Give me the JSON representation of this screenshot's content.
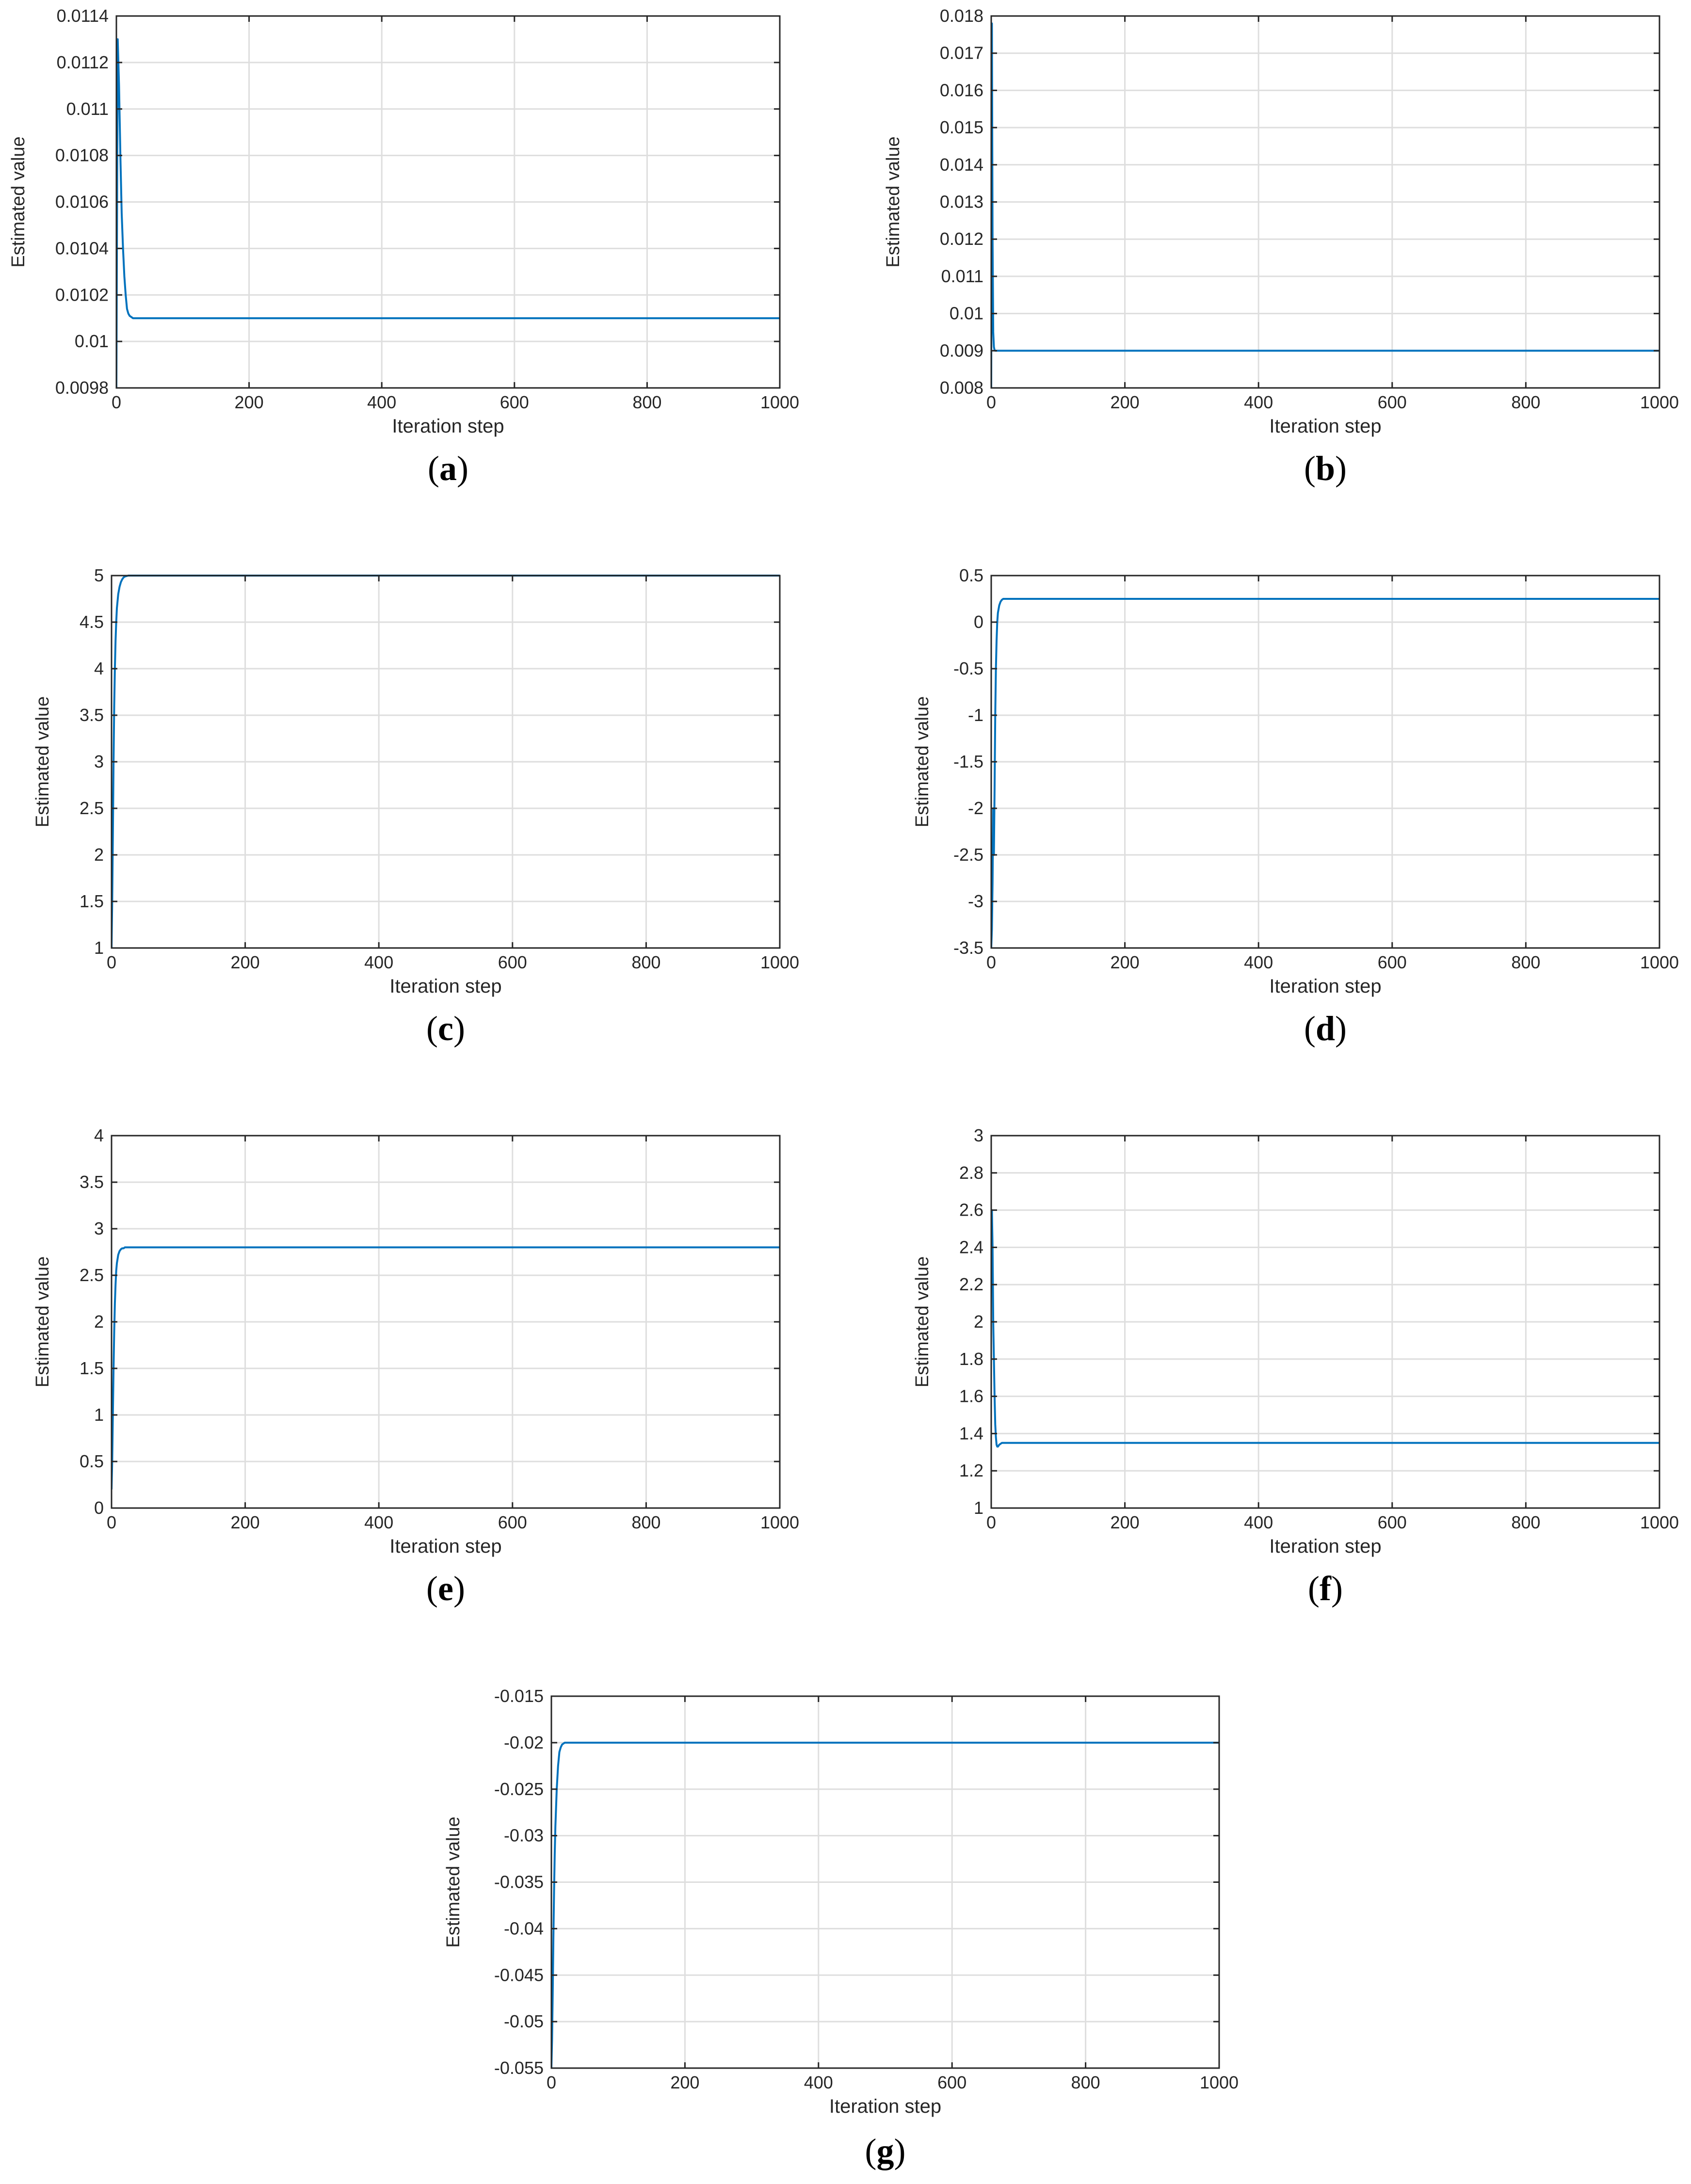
{
  "colors": {
    "series": "#0072bd",
    "grid": "#dedede",
    "axes": "#262626"
  },
  "chart_data": [
    {
      "type": "line",
      "caption": "a",
      "xlabel": "Iteration step",
      "ylabel": "Estimated value",
      "xlim": [
        0,
        1000
      ],
      "ylim": [
        0.0098,
        0.0114
      ],
      "grid": true,
      "xticks": [
        0,
        200,
        400,
        600,
        800,
        1000
      ],
      "xtick_labels": [
        "0",
        "200",
        "400",
        "600",
        "800",
        "1000"
      ],
      "yticks": [
        0.0098,
        0.01,
        0.0102,
        0.0104,
        0.0106,
        0.0108,
        0.011,
        0.0112,
        0.0114
      ],
      "ytick_labels": [
        "0.0098",
        "0.01",
        "0.0102",
        "0.0104",
        "0.0106",
        "0.0108",
        "0.011",
        "0.0112",
        "0.0114"
      ],
      "series": [
        {
          "x": [
            0,
            2,
            4,
            6,
            8,
            10,
            12,
            14,
            16,
            18,
            20,
            25,
            30,
            50,
            100,
            1000
          ],
          "y": [
            0.0098,
            0.0113,
            0.0111,
            0.0108,
            0.01055,
            0.0104,
            0.01028,
            0.0102,
            0.01014,
            0.01012,
            0.01011,
            0.0101,
            0.0101,
            0.0101,
            0.0101,
            0.0101
          ]
        }
      ]
    },
    {
      "type": "line",
      "caption": "b",
      "xlabel": "Iteration step",
      "ylabel": "Estimated value",
      "xlim": [
        0,
        1000
      ],
      "ylim": [
        0.008,
        0.018
      ],
      "grid": true,
      "xticks": [
        0,
        200,
        400,
        600,
        800,
        1000
      ],
      "xtick_labels": [
        "0",
        "200",
        "400",
        "600",
        "800",
        "1000"
      ],
      "yticks": [
        0.008,
        0.009,
        0.01,
        0.011,
        0.012,
        0.013,
        0.014,
        0.015,
        0.016,
        0.017,
        0.018
      ],
      "ytick_labels": [
        "0.008",
        "0.009",
        "0.01",
        "0.011",
        "0.012",
        "0.013",
        "0.014",
        "0.015",
        "0.016",
        "0.017",
        "0.018"
      ],
      "series": [
        {
          "x": [
            0,
            1,
            2,
            3,
            4,
            5,
            6,
            8,
            10,
            20,
            1000
          ],
          "y": [
            0.008,
            0.0178,
            0.012,
            0.0095,
            0.0091,
            0.00902,
            0.009,
            0.009,
            0.009,
            0.009,
            0.009
          ]
        }
      ]
    },
    {
      "type": "line",
      "caption": "c",
      "xlabel": "Iteration step",
      "ylabel": "Estimated value",
      "xlim": [
        0,
        1000
      ],
      "ylim": [
        1,
        5
      ],
      "grid": true,
      "xticks": [
        0,
        200,
        400,
        600,
        800,
        1000
      ],
      "xtick_labels": [
        "0",
        "200",
        "400",
        "600",
        "800",
        "1000"
      ],
      "yticks": [
        1,
        1.5,
        2,
        2.5,
        3,
        3.5,
        4,
        4.5,
        5
      ],
      "ytick_labels": [
        "1",
        "1.5",
        "2",
        "2.5",
        "3",
        "3.5",
        "4",
        "4.5",
        "5"
      ],
      "series": [
        {
          "x": [
            0,
            1,
            2,
            3,
            4,
            5,
            6,
            7,
            8,
            10,
            12,
            14,
            16,
            18,
            20,
            25,
            30,
            50,
            100,
            1000
          ],
          "y": [
            1,
            1.5,
            2.2,
            3.0,
            3.6,
            4.0,
            4.3,
            4.5,
            4.65,
            4.8,
            4.88,
            4.93,
            4.96,
            4.98,
            4.99,
            5.0,
            5.0,
            5.0,
            5.0,
            5.0
          ]
        }
      ]
    },
    {
      "type": "line",
      "caption": "d",
      "xlabel": "Iteration step",
      "ylabel": "Estimated value",
      "xlim": [
        0,
        1000
      ],
      "ylim": [
        -3.5,
        0.5
      ],
      "grid": true,
      "xticks": [
        0,
        200,
        400,
        600,
        800,
        1000
      ],
      "xtick_labels": [
        "0",
        "200",
        "400",
        "600",
        "800",
        "1000"
      ],
      "yticks": [
        -3.5,
        -3,
        -2.5,
        -2,
        -1.5,
        -1,
        -0.5,
        0,
        0.5
      ],
      "ytick_labels": [
        "-3.5",
        "-3",
        "-2.5",
        "-2",
        "-1.5",
        "-1",
        "-0.5",
        "0",
        "0.5"
      ],
      "series": [
        {
          "x": [
            0,
            1,
            2,
            3,
            4,
            5,
            6,
            7,
            8,
            9,
            10,
            12,
            14,
            16,
            18,
            20,
            25,
            30,
            50,
            100,
            1000
          ],
          "y": [
            -3.5,
            -3.3,
            -2.8,
            -2.0,
            -2.5,
            -1.8,
            -1.0,
            -0.5,
            -0.2,
            0.0,
            0.1,
            0.18,
            0.22,
            0.24,
            0.25,
            0.25,
            0.25,
            0.25,
            0.25,
            0.25,
            0.25
          ]
        }
      ]
    },
    {
      "type": "line",
      "caption": "e",
      "xlabel": "Iteration step",
      "ylabel": "Estimated value",
      "xlim": [
        0,
        1000
      ],
      "ylim": [
        0,
        4
      ],
      "grid": true,
      "xticks": [
        0,
        200,
        400,
        600,
        800,
        1000
      ],
      "xtick_labels": [
        "0",
        "200",
        "400",
        "600",
        "800",
        "1000"
      ],
      "yticks": [
        0,
        0.5,
        1,
        1.5,
        2,
        2.5,
        3,
        3.5,
        4
      ],
      "ytick_labels": [
        "0",
        "0.5",
        "1",
        "1.5",
        "2",
        "2.5",
        "3",
        "3.5",
        "4"
      ],
      "series": [
        {
          "x": [
            0,
            1,
            2,
            3,
            4,
            5,
            6,
            7,
            8,
            10,
            12,
            14,
            16,
            18,
            20,
            25,
            30,
            50,
            100,
            1000
          ],
          "y": [
            0.2,
            0.5,
            1.0,
            1.5,
            1.9,
            2.2,
            2.4,
            2.55,
            2.63,
            2.72,
            2.76,
            2.78,
            2.79,
            2.79,
            2.8,
            2.8,
            2.8,
            2.8,
            2.8,
            2.8
          ]
        }
      ]
    },
    {
      "type": "line",
      "caption": "f",
      "xlabel": "Iteration step",
      "ylabel": "Estimated value",
      "xlim": [
        0,
        1000
      ],
      "ylim": [
        1,
        3
      ],
      "grid": true,
      "xticks": [
        0,
        200,
        400,
        600,
        800,
        1000
      ],
      "xtick_labels": [
        "0",
        "200",
        "400",
        "600",
        "800",
        "1000"
      ],
      "yticks": [
        1,
        1.2,
        1.4,
        1.6,
        1.8,
        2,
        2.2,
        2.4,
        2.6,
        2.8,
        3
      ],
      "ytick_labels": [
        "1",
        "1.2",
        "1.4",
        "1.6",
        "1.8",
        "2",
        "2.2",
        "2.4",
        "2.6",
        "2.8",
        "3"
      ],
      "series": [
        {
          "x": [
            0,
            1,
            2,
            3,
            4,
            5,
            6,
            7,
            8,
            9,
            10,
            12,
            14,
            16,
            20,
            30,
            50,
            100,
            1000
          ],
          "y": [
            2.5,
            2.6,
            2.4,
            2.0,
            1.8,
            1.6,
            1.45,
            1.38,
            1.34,
            1.33,
            1.33,
            1.34,
            1.345,
            1.35,
            1.35,
            1.35,
            1.35,
            1.35,
            1.35
          ]
        }
      ]
    },
    {
      "type": "line",
      "caption": "g",
      "xlabel": "Iteration step",
      "ylabel": "Estimated value",
      "xlim": [
        0,
        1000
      ],
      "ylim": [
        -0.055,
        -0.015
      ],
      "grid": true,
      "xticks": [
        0,
        200,
        400,
        600,
        800,
        1000
      ],
      "xtick_labels": [
        "0",
        "200",
        "400",
        "600",
        "800",
        "1000"
      ],
      "yticks": [
        -0.055,
        -0.05,
        -0.045,
        -0.04,
        -0.035,
        -0.03,
        -0.025,
        -0.02,
        -0.015
      ],
      "ytick_labels": [
        "-0.055",
        "-0.05",
        "-0.045",
        "-0.04",
        "-0.035",
        "-0.03",
        "-0.025",
        "-0.02",
        "-0.015"
      ],
      "series": [
        {
          "x": [
            0,
            1,
            2,
            3,
            4,
            5,
            6,
            7,
            8,
            10,
            12,
            14,
            16,
            18,
            20,
            25,
            30,
            50,
            100,
            1000
          ],
          "y": [
            -0.055,
            -0.052,
            -0.047,
            -0.041,
            -0.036,
            -0.032,
            -0.029,
            -0.027,
            -0.025,
            -0.0225,
            -0.021,
            -0.0205,
            -0.0202,
            -0.0201,
            -0.02,
            -0.02,
            -0.02,
            -0.02,
            -0.02,
            -0.02
          ]
        }
      ]
    }
  ]
}
